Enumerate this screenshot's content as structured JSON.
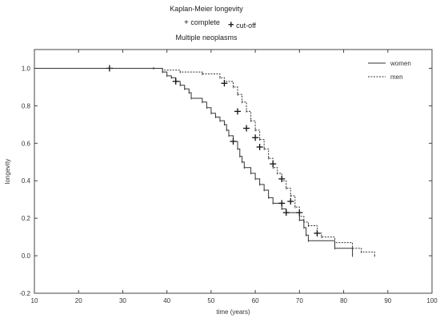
{
  "chart_data": {
    "type": "line",
    "title": "Kaplan-Meier longevity",
    "subtitle": "Multiple neoplasms",
    "marker_legend": {
      "complete": "complete",
      "censored": "cut-off"
    },
    "xlabel": "time (years)",
    "ylabel": "longevity",
    "xlim": [
      10,
      100
    ],
    "ylim": [
      -0.2,
      1.1
    ],
    "x_ticks": [
      10,
      20,
      30,
      40,
      50,
      60,
      70,
      80,
      90,
      100
    ],
    "y_ticks": [
      -0.2,
      0.0,
      0.2,
      0.4,
      0.6,
      0.8,
      1.0
    ],
    "legend_position": "top-right",
    "grid": false,
    "series": [
      {
        "name": "women",
        "style": "solid",
        "color": "#333333",
        "steps": [
          [
            10,
            1.0
          ],
          [
            37,
            1.0
          ],
          [
            39,
            0.98
          ],
          [
            40,
            0.96
          ],
          [
            41,
            0.95
          ],
          [
            42,
            0.93
          ],
          [
            43,
            0.91
          ],
          [
            44,
            0.89
          ],
          [
            45,
            0.87
          ],
          [
            45.5,
            0.84
          ],
          [
            48,
            0.82
          ],
          [
            49,
            0.79
          ],
          [
            50,
            0.76
          ],
          [
            51,
            0.74
          ],
          [
            52,
            0.72
          ],
          [
            53,
            0.7
          ],
          [
            53.5,
            0.67
          ],
          [
            54,
            0.64
          ],
          [
            55,
            0.61
          ],
          [
            56,
            0.57
          ],
          [
            56.5,
            0.53
          ],
          [
            57,
            0.5
          ],
          [
            57.5,
            0.47
          ],
          [
            59,
            0.44
          ],
          [
            60,
            0.41
          ],
          [
            61,
            0.38
          ],
          [
            62,
            0.35
          ],
          [
            63,
            0.31
          ],
          [
            64,
            0.28
          ],
          [
            66,
            0.25
          ],
          [
            67,
            0.23
          ],
          [
            70,
            0.19
          ],
          [
            71,
            0.15
          ],
          [
            71.5,
            0.11
          ],
          [
            72,
            0.08
          ],
          [
            78,
            0.04
          ],
          [
            82,
            0.0
          ]
        ],
        "end": 82,
        "censored": [
          [
            27,
            1.0
          ],
          [
            42,
            0.93
          ],
          [
            55,
            0.61
          ],
          [
            66,
            0.28
          ],
          [
            67,
            0.23
          ],
          [
            70,
            0.23
          ]
        ]
      },
      {
        "name": "men",
        "style": "dotted",
        "color": "#333333",
        "steps": [
          [
            10,
            1.0
          ],
          [
            37,
            1.0
          ],
          [
            39,
            0.99
          ],
          [
            43,
            0.98
          ],
          [
            48,
            0.97
          ],
          [
            52,
            0.95
          ],
          [
            53,
            0.93
          ],
          [
            55,
            0.9
          ],
          [
            56,
            0.86
          ],
          [
            57,
            0.82
          ],
          [
            58,
            0.77
          ],
          [
            59,
            0.72
          ],
          [
            60,
            0.67
          ],
          [
            61,
            0.62
          ],
          [
            62,
            0.57
          ],
          [
            63,
            0.52
          ],
          [
            64,
            0.47
          ],
          [
            65,
            0.44
          ],
          [
            66,
            0.4
          ],
          [
            67,
            0.36
          ],
          [
            68,
            0.32
          ],
          [
            69,
            0.26
          ],
          [
            70,
            0.21
          ],
          [
            71,
            0.18
          ],
          [
            72,
            0.16
          ],
          [
            74,
            0.12
          ],
          [
            75,
            0.1
          ],
          [
            78,
            0.07
          ],
          [
            82,
            0.04
          ],
          [
            84,
            0.02
          ],
          [
            87,
            0.0
          ]
        ],
        "end": 87,
        "censored": [
          [
            53,
            0.92
          ],
          [
            56,
            0.77
          ],
          [
            58,
            0.68
          ],
          [
            60,
            0.63
          ],
          [
            61,
            0.58
          ],
          [
            64,
            0.49
          ],
          [
            66,
            0.41
          ],
          [
            68,
            0.29
          ],
          [
            74,
            0.12
          ]
        ]
      }
    ]
  }
}
